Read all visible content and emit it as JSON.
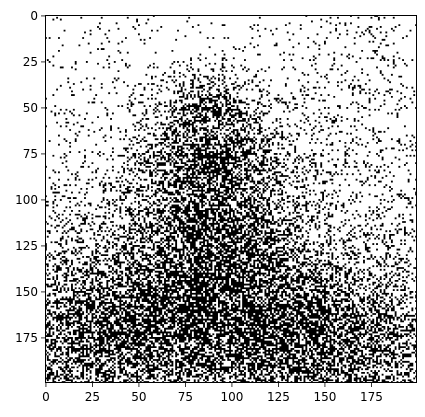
{
  "chart_data": {
    "type": "heatmap",
    "title": "",
    "xlabel": "",
    "ylabel": "",
    "image_size": [
      200,
      200
    ],
    "xlim": [
      -0.5,
      199.5
    ],
    "ylim": [
      199.5,
      -0.5
    ],
    "y_axis_inverted": true,
    "colormap": "binary (black = 1, white = 0)",
    "content_description": "binarized noisy image with a dense black region forming a standing figure near the center and denser noise toward the bottom",
    "x_ticks": [
      0,
      25,
      50,
      75,
      100,
      125,
      150,
      175
    ],
    "y_ticks": [
      0,
      25,
      50,
      75,
      100,
      125,
      150,
      175
    ],
    "grid": false,
    "legend": "none"
  },
  "colors": {
    "ink": "#000000",
    "paper": "#ffffff"
  }
}
